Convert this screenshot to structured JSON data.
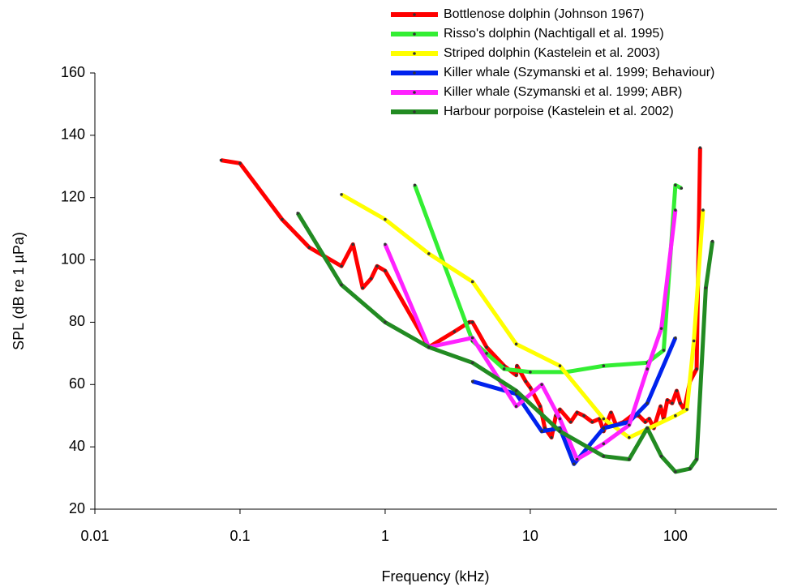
{
  "chart_data": {
    "type": "line",
    "xlabel": "Frequency (kHz)",
    "ylabel": "SPL (dB re 1 µPa)",
    "xscale": "log",
    "xlim": [
      0.01,
      500
    ],
    "xticks": [
      0.01,
      0.1,
      1,
      10,
      100
    ],
    "ylim": [
      20,
      160
    ],
    "yticks": [
      20,
      40,
      60,
      80,
      100,
      120,
      140,
      160
    ],
    "legend": "top-right",
    "grid": false,
    "series": [
      {
        "name": "Bottlenose dolphin (Johnson 1967)",
        "color": "#ff0000",
        "x": [
          0.074,
          0.1,
          0.195,
          0.3,
          0.5,
          0.6,
          0.7,
          0.8,
          0.88,
          1,
          2,
          3,
          3.8,
          4,
          5,
          6.6,
          8,
          8.1,
          9.3,
          10,
          11.7,
          12.6,
          14,
          15,
          16,
          19,
          21,
          23.4,
          26.7,
          30,
          32,
          36,
          39,
          44,
          50,
          56,
          62,
          66,
          71,
          79,
          83,
          88,
          95,
          102,
          108,
          115,
          126,
          140,
          148
        ],
        "values": [
          132,
          131,
          113,
          104,
          98,
          105,
          91,
          94,
          98,
          96.5,
          72,
          77,
          80,
          80,
          72,
          66,
          63,
          66,
          61,
          59,
          53,
          46,
          43,
          50,
          52,
          48,
          51,
          50,
          48,
          49,
          45,
          51,
          47,
          48,
          50,
          50,
          48,
          49,
          46,
          53,
          49,
          55,
          54,
          58,
          54,
          52,
          61,
          65,
          136
        ]
      },
      {
        "name": "Risso's dolphin (Nachtigall et al. 1995)",
        "color": "#33ee33",
        "x": [
          1.6,
          4,
          5,
          6.6,
          10,
          17.5,
          32,
          64,
          83,
          100,
          110
        ],
        "values": [
          124,
          74,
          70,
          65,
          64,
          64,
          66,
          67,
          71,
          124,
          123
        ]
      },
      {
        "name": "Striped dolphin (Kastelein et al. 2003)",
        "color": "#ffff00",
        "x": [
          0.5,
          1,
          2,
          4,
          8,
          16,
          32,
          48,
          100,
          120,
          134,
          155
        ],
        "values": [
          121,
          113,
          102,
          93,
          73,
          66,
          49,
          43,
          50,
          52,
          74,
          116
        ]
      },
      {
        "name": "Killer whale (Szymanski et al. 1999; Behaviour)",
        "color": "#0022ee",
        "x": [
          4,
          8,
          12,
          16,
          20,
          32,
          48,
          64,
          100
        ],
        "values": [
          61,
          57,
          45,
          46,
          34.5,
          46,
          48,
          54,
          75
        ]
      },
      {
        "name": "Killer whale (Szymanski et al. 1999;  ABR)",
        "color": "#ff22ff",
        "x": [
          1,
          2,
          4,
          8,
          12,
          16,
          21,
          32,
          48,
          64,
          80,
          100
        ],
        "values": [
          105,
          72,
          75,
          53,
          60,
          49,
          36,
          41,
          47,
          65,
          78,
          116
        ]
      },
      {
        "name": "Harbour porpoise (Kastelein et al. 2002)",
        "color": "#228b22",
        "x": [
          0.25,
          0.5,
          1,
          2,
          4,
          8,
          16,
          32,
          48,
          64,
          80,
          100,
          126,
          140,
          162,
          180
        ],
        "values": [
          115,
          92,
          80,
          72,
          67,
          58,
          45,
          37,
          36,
          46,
          37,
          32,
          33,
          36,
          91,
          106
        ]
      }
    ]
  }
}
